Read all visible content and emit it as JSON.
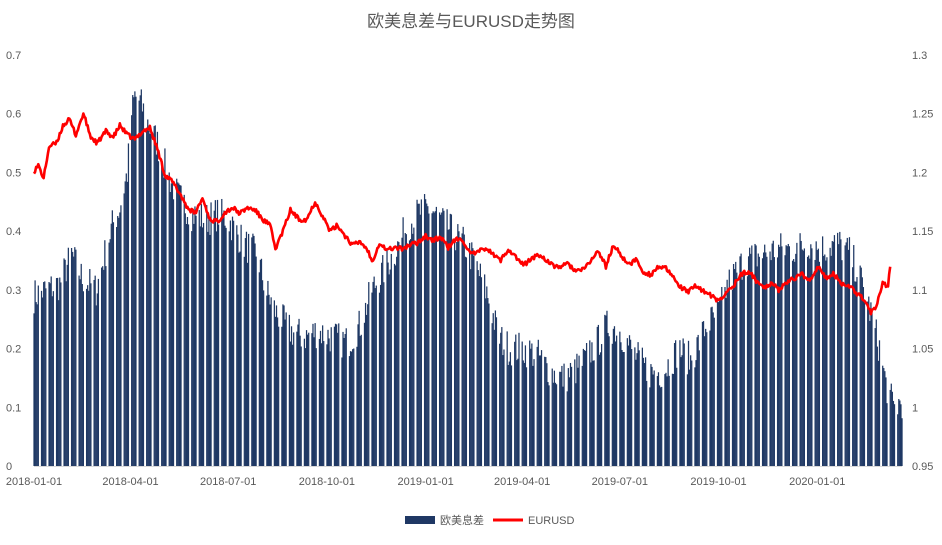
{
  "chart_data": {
    "type": "bar",
    "title": "欧美息差与EURUSD走势图",
    "x_range": [
      "2018-01-01",
      "2020-03-20"
    ],
    "x_ticks": [
      "2018-01-01",
      "2018-04-01",
      "2018-07-01",
      "2018-10-01",
      "2019-01-01",
      "2019-04-01",
      "2019-07-01",
      "2019-10-01",
      "2020-01-01"
    ],
    "y_left": {
      "min": 0,
      "max": 0.7,
      "step": 0.1,
      "ticks": [
        "0",
        "0.1",
        "0.2",
        "0.3",
        "0.4",
        "0.5",
        "0.6",
        "0.7"
      ]
    },
    "y_right": {
      "min": 0.95,
      "max": 1.3,
      "step": 0.05,
      "ticks": [
        "0.95",
        "1",
        "1.05",
        "1.1",
        "1.15",
        "1.2",
        "1.25",
        "1.3"
      ]
    },
    "grid": false,
    "legend_position": "bottom",
    "series": [
      {
        "name": "欧美息差",
        "type": "bar",
        "axis": "left",
        "color": "#1f3864",
        "anchors": [
          [
            "2018-01-01",
            0.29
          ],
          [
            "2018-01-12",
            0.3
          ],
          [
            "2018-01-25",
            0.31
          ],
          [
            "2018-02-05",
            0.36
          ],
          [
            "2018-02-15",
            0.32
          ],
          [
            "2018-02-28",
            0.3
          ],
          [
            "2018-03-08",
            0.36
          ],
          [
            "2018-03-15",
            0.41
          ],
          [
            "2018-03-22",
            0.44
          ],
          [
            "2018-03-29",
            0.5
          ],
          [
            "2018-04-02",
            0.6
          ],
          [
            "2018-04-05",
            0.63
          ],
          [
            "2018-04-10",
            0.62
          ],
          [
            "2018-04-18",
            0.58
          ],
          [
            "2018-04-26",
            0.55
          ],
          [
            "2018-05-05",
            0.5
          ],
          [
            "2018-05-15",
            0.46
          ],
          [
            "2018-05-28",
            0.43
          ],
          [
            "2018-06-10",
            0.42
          ],
          [
            "2018-06-22",
            0.43
          ],
          [
            "2018-07-01",
            0.42
          ],
          [
            "2018-07-15",
            0.38
          ],
          [
            "2018-07-28",
            0.36
          ],
          [
            "2018-08-05",
            0.3
          ],
          [
            "2018-08-15",
            0.26
          ],
          [
            "2018-08-28",
            0.23
          ],
          [
            "2018-09-10",
            0.22
          ],
          [
            "2018-09-22",
            0.23
          ],
          [
            "2018-10-05",
            0.22
          ],
          [
            "2018-10-20",
            0.21
          ],
          [
            "2018-11-01",
            0.24
          ],
          [
            "2018-11-12",
            0.3
          ],
          [
            "2018-11-25",
            0.34
          ],
          [
            "2018-12-05",
            0.37
          ],
          [
            "2018-12-15",
            0.41
          ],
          [
            "2018-12-25",
            0.43
          ],
          [
            "2019-01-05",
            0.44
          ],
          [
            "2019-01-15",
            0.42
          ],
          [
            "2019-01-25",
            0.4
          ],
          [
            "2019-02-05",
            0.38
          ],
          [
            "2019-02-15",
            0.35
          ],
          [
            "2019-02-28",
            0.29
          ],
          [
            "2019-03-10",
            0.22
          ],
          [
            "2019-03-20",
            0.2
          ],
          [
            "2019-04-01",
            0.2
          ],
          [
            "2019-04-15",
            0.19
          ],
          [
            "2019-04-28",
            0.16
          ],
          [
            "2019-05-10",
            0.15
          ],
          [
            "2019-05-25",
            0.17
          ],
          [
            "2019-06-10",
            0.21
          ],
          [
            "2019-06-20",
            0.24
          ],
          [
            "2019-07-01",
            0.23
          ],
          [
            "2019-07-15",
            0.19
          ],
          [
            "2019-07-28",
            0.16
          ],
          [
            "2019-08-10",
            0.16
          ],
          [
            "2019-08-25",
            0.2
          ],
          [
            "2019-09-05",
            0.18
          ],
          [
            "2019-09-20",
            0.24
          ],
          [
            "2019-10-01",
            0.26
          ],
          [
            "2019-10-10",
            0.31
          ],
          [
            "2019-10-25",
            0.35
          ],
          [
            "2019-11-10",
            0.36
          ],
          [
            "2019-11-25",
            0.37
          ],
          [
            "2019-12-10",
            0.37
          ],
          [
            "2019-12-25",
            0.38
          ],
          [
            "2020-01-05",
            0.37
          ],
          [
            "2020-01-20",
            0.38
          ],
          [
            "2020-02-01",
            0.36
          ],
          [
            "2020-02-10",
            0.32
          ],
          [
            "2020-02-20",
            0.26
          ],
          [
            "2020-02-28",
            0.2
          ],
          [
            "2020-03-05",
            0.14
          ],
          [
            "2020-03-12",
            0.1
          ],
          [
            "2020-03-20",
            0.11
          ]
        ]
      },
      {
        "name": "EURUSD",
        "type": "line",
        "axis": "right",
        "color": "#ff0000",
        "anchors": [
          [
            "2018-01-01",
            1.201
          ],
          [
            "2018-01-05",
            1.206
          ],
          [
            "2018-01-10",
            1.195
          ],
          [
            "2018-01-15",
            1.222
          ],
          [
            "2018-01-22",
            1.225
          ],
          [
            "2018-01-28",
            1.24
          ],
          [
            "2018-02-03",
            1.245
          ],
          [
            "2018-02-09",
            1.232
          ],
          [
            "2018-02-16",
            1.25
          ],
          [
            "2018-02-23",
            1.23
          ],
          [
            "2018-03-01",
            1.225
          ],
          [
            "2018-03-09",
            1.235
          ],
          [
            "2018-03-16",
            1.23
          ],
          [
            "2018-03-22",
            1.24
          ],
          [
            "2018-03-29",
            1.232
          ],
          [
            "2018-04-05",
            1.228
          ],
          [
            "2018-04-12",
            1.235
          ],
          [
            "2018-04-19",
            1.238
          ],
          [
            "2018-04-26",
            1.22
          ],
          [
            "2018-05-03",
            1.198
          ],
          [
            "2018-05-10",
            1.192
          ],
          [
            "2018-05-17",
            1.182
          ],
          [
            "2018-05-24",
            1.17
          ],
          [
            "2018-05-31",
            1.165
          ],
          [
            "2018-06-07",
            1.178
          ],
          [
            "2018-06-14",
            1.16
          ],
          [
            "2018-06-21",
            1.158
          ],
          [
            "2018-06-28",
            1.166
          ],
          [
            "2018-07-05",
            1.17
          ],
          [
            "2018-07-12",
            1.165
          ],
          [
            "2018-07-19",
            1.17
          ],
          [
            "2018-07-26",
            1.168
          ],
          [
            "2018-08-02",
            1.16
          ],
          [
            "2018-08-09",
            1.155
          ],
          [
            "2018-08-14",
            1.135
          ],
          [
            "2018-08-21",
            1.15
          ],
          [
            "2018-08-28",
            1.168
          ],
          [
            "2018-09-05",
            1.16
          ],
          [
            "2018-09-12",
            1.16
          ],
          [
            "2018-09-20",
            1.175
          ],
          [
            "2018-09-27",
            1.163
          ],
          [
            "2018-10-04",
            1.15
          ],
          [
            "2018-10-11",
            1.155
          ],
          [
            "2018-10-18",
            1.146
          ],
          [
            "2018-10-25",
            1.138
          ],
          [
            "2018-11-01",
            1.141
          ],
          [
            "2018-11-08",
            1.134
          ],
          [
            "2018-11-12",
            1.124
          ],
          [
            "2018-11-19",
            1.14
          ],
          [
            "2018-11-26",
            1.134
          ],
          [
            "2018-12-03",
            1.136
          ],
          [
            "2018-12-10",
            1.135
          ],
          [
            "2018-12-17",
            1.138
          ],
          [
            "2018-12-24",
            1.14
          ],
          [
            "2019-01-01",
            1.146
          ],
          [
            "2019-01-08",
            1.142
          ],
          [
            "2019-01-15",
            1.145
          ],
          [
            "2019-01-22",
            1.136
          ],
          [
            "2019-01-29",
            1.143
          ],
          [
            "2019-02-05",
            1.142
          ],
          [
            "2019-02-12",
            1.13
          ],
          [
            "2019-02-19",
            1.132
          ],
          [
            "2019-02-26",
            1.136
          ],
          [
            "2019-03-05",
            1.13
          ],
          [
            "2019-03-12",
            1.125
          ],
          [
            "2019-03-19",
            1.135
          ],
          [
            "2019-03-26",
            1.128
          ],
          [
            "2019-04-02",
            1.121
          ],
          [
            "2019-04-09",
            1.126
          ],
          [
            "2019-04-16",
            1.13
          ],
          [
            "2019-04-23",
            1.126
          ],
          [
            "2019-04-30",
            1.12
          ],
          [
            "2019-05-07",
            1.12
          ],
          [
            "2019-05-14",
            1.122
          ],
          [
            "2019-05-21",
            1.116
          ],
          [
            "2019-05-28",
            1.117
          ],
          [
            "2019-06-04",
            1.125
          ],
          [
            "2019-06-11",
            1.133
          ],
          [
            "2019-06-18",
            1.12
          ],
          [
            "2019-06-25",
            1.138
          ],
          [
            "2019-07-02",
            1.13
          ],
          [
            "2019-07-09",
            1.121
          ],
          [
            "2019-07-16",
            1.126
          ],
          [
            "2019-07-23",
            1.115
          ],
          [
            "2019-07-30",
            1.113
          ],
          [
            "2019-08-06",
            1.12
          ],
          [
            "2019-08-13",
            1.118
          ],
          [
            "2019-08-20",
            1.11
          ],
          [
            "2019-08-27",
            1.102
          ],
          [
            "2019-09-03",
            1.098
          ],
          [
            "2019-09-10",
            1.104
          ],
          [
            "2019-09-17",
            1.099
          ],
          [
            "2019-09-24",
            1.095
          ],
          [
            "2019-10-01",
            1.09
          ],
          [
            "2019-10-08",
            1.097
          ],
          [
            "2019-10-15",
            1.104
          ],
          [
            "2019-10-22",
            1.113
          ],
          [
            "2019-10-29",
            1.116
          ],
          [
            "2019-11-05",
            1.108
          ],
          [
            "2019-11-12",
            1.102
          ],
          [
            "2019-11-19",
            1.106
          ],
          [
            "2019-11-26",
            1.1
          ],
          [
            "2019-12-03",
            1.107
          ],
          [
            "2019-12-10",
            1.109
          ],
          [
            "2019-12-17",
            1.114
          ],
          [
            "2019-12-24",
            1.108
          ],
          [
            "2020-01-02",
            1.119
          ],
          [
            "2020-01-09",
            1.11
          ],
          [
            "2020-01-16",
            1.114
          ],
          [
            "2020-01-23",
            1.106
          ],
          [
            "2020-01-30",
            1.104
          ],
          [
            "2020-02-06",
            1.098
          ],
          [
            "2020-02-13",
            1.093
          ],
          [
            "2020-02-20",
            1.081
          ],
          [
            "2020-02-25",
            1.085
          ],
          [
            "2020-03-02",
            1.105
          ],
          [
            "2020-03-07",
            1.104
          ],
          [
            "2020-03-09",
            1.119
          ]
        ]
      }
    ]
  }
}
